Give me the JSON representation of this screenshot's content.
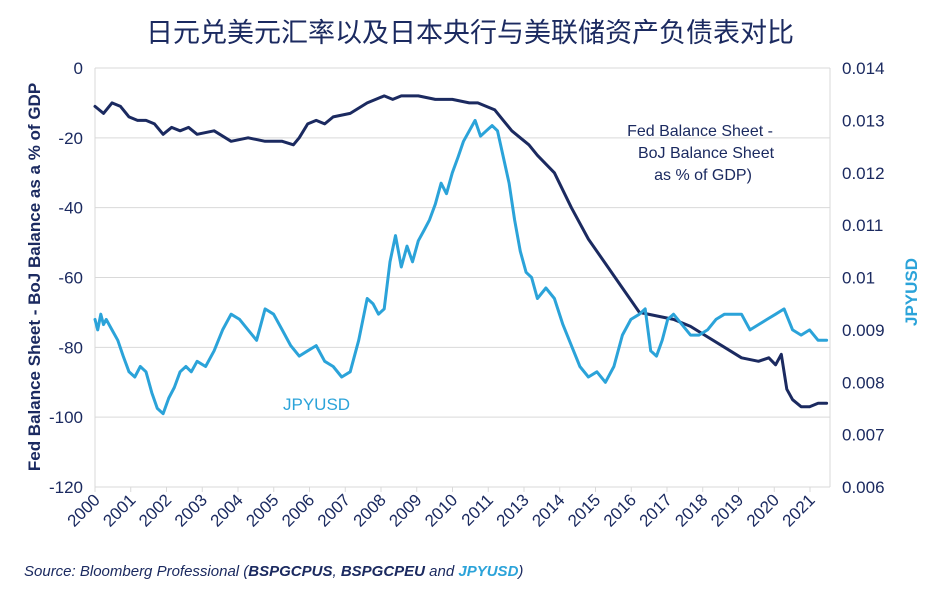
{
  "chart_data": {
    "type": "line",
    "title": "日元兑美元汇率以及日本央行与美联储资产负债表对比",
    "x_ticks": [
      "2000",
      "2001",
      "2002",
      "2003",
      "2004",
      "2005",
      "2006",
      "2007",
      "2008",
      "2009",
      "2010",
      "2011",
      "2013",
      "2014",
      "2015",
      "2016",
      "2017",
      "2018",
      "2019",
      "2020",
      "2021"
    ],
    "y_left": {
      "label": "Fed Balance Sheet - BoJ Balance as a % of GDP",
      "ticks": [
        "0",
        "-20",
        "-40",
        "-60",
        "-80",
        "-100",
        "-120"
      ],
      "range": [
        -120,
        0
      ]
    },
    "y_right": {
      "label": "JPYUSD",
      "ticks": [
        "0.014",
        "0.013",
        "0.012",
        "0.011",
        "0.01",
        "0.009",
        "0.008",
        "0.007",
        "0.006"
      ],
      "range": [
        0.006,
        0.014
      ]
    },
    "grid": true,
    "series": [
      {
        "name": "Fed Balance Sheet - BoJ Balance Sheet as % of GDP)",
        "axis": "left",
        "color": "#1b2a60",
        "x": [
          2000.0,
          2000.25,
          2000.5,
          2000.75,
          2001.0,
          2001.25,
          2001.5,
          2001.75,
          2002.0,
          2002.25,
          2002.5,
          2002.75,
          2003.0,
          2003.5,
          2004.0,
          2004.5,
          2005.0,
          2005.5,
          2005.83,
          2006.0,
          2006.25,
          2006.5,
          2006.75,
          2007.0,
          2007.5,
          2008.0,
          2008.25,
          2008.5,
          2008.75,
          2009.0,
          2009.5,
          2010.0,
          2010.5,
          2011.0,
          2011.25,
          2011.5,
          2011.75,
          2012.0,
          2012.25,
          2012.5,
          2012.75,
          2013.0,
          2013.5,
          2014.0,
          2014.5,
          2015.0,
          2015.5,
          2016.0,
          2016.5,
          2017.0,
          2017.5,
          2018.0,
          2018.5,
          2019.0,
          2019.5,
          2019.8,
          2020.0,
          2020.17,
          2020.33,
          2020.5,
          2020.75,
          2021.0,
          2021.25,
          2021.5
        ],
        "values": [
          -11,
          -13,
          -10,
          -11,
          -14,
          -15,
          -15,
          -16,
          -19,
          -17,
          -18,
          -17,
          -19,
          -18,
          -21,
          -20,
          -21,
          -21,
          -22,
          -20,
          -16,
          -15,
          -16,
          -14,
          -13,
          -10,
          -9,
          -8,
          -9,
          -8,
          -8,
          -9,
          -9,
          -10,
          -10,
          -11,
          -12,
          -15,
          -18,
          -20,
          -22,
          -25,
          -30,
          -40,
          -49,
          -56,
          -63,
          -70,
          -71,
          -72,
          -74,
          -77,
          -80,
          -83,
          -84,
          -83,
          -85,
          -82,
          -92,
          -95,
          -97,
          -97,
          -96,
          -96
        ]
      },
      {
        "name": "JPYUSD",
        "axis": "right",
        "color": "#2ba3d9",
        "x": [
          2000.0,
          2000.08,
          2000.17,
          2000.25,
          2000.33,
          2000.5,
          2000.67,
          2000.83,
          2001.0,
          2001.17,
          2001.33,
          2001.5,
          2001.67,
          2001.83,
          2002.0,
          2002.17,
          2002.33,
          2002.5,
          2002.67,
          2002.83,
          2003.0,
          2003.25,
          2003.5,
          2003.75,
          2004.0,
          2004.25,
          2004.5,
          2004.75,
          2005.0,
          2005.25,
          2005.5,
          2005.75,
          2006.0,
          2006.25,
          2006.5,
          2006.75,
          2007.0,
          2007.25,
          2007.5,
          2007.75,
          2008.0,
          2008.17,
          2008.33,
          2008.5,
          2008.67,
          2008.83,
          2009.0,
          2009.17,
          2009.33,
          2009.5,
          2009.67,
          2009.83,
          2010.0,
          2010.17,
          2010.33,
          2010.5,
          2010.67,
          2010.83,
          2011.0,
          2011.17,
          2011.33,
          2011.5,
          2011.67,
          2011.83,
          2012.0,
          2012.17,
          2012.33,
          2012.5,
          2012.67,
          2012.83,
          2013.0,
          2013.25,
          2013.5,
          2013.75,
          2014.0,
          2014.25,
          2014.5,
          2014.75,
          2015.0,
          2015.25,
          2015.5,
          2015.75,
          2016.0,
          2016.17,
          2016.33,
          2016.5,
          2016.67,
          2016.83,
          2017.0,
          2017.25,
          2017.5,
          2017.75,
          2018.0,
          2018.25,
          2018.5,
          2018.75,
          2019.0,
          2019.25,
          2019.5,
          2019.75,
          2020.0,
          2020.25,
          2020.5,
          2020.75,
          2021.0,
          2021.25,
          2021.5
        ],
        "values": [
          0.0092,
          0.009,
          0.0093,
          0.0091,
          0.0092,
          0.009,
          0.0088,
          0.0085,
          0.0082,
          0.0081,
          0.0083,
          0.0082,
          0.0078,
          0.0075,
          0.0074,
          0.0077,
          0.0079,
          0.0082,
          0.0083,
          0.0082,
          0.0084,
          0.0083,
          0.0086,
          0.009,
          0.0093,
          0.0092,
          0.009,
          0.0088,
          0.0094,
          0.0093,
          0.009,
          0.0087,
          0.0085,
          0.0086,
          0.0087,
          0.0084,
          0.0083,
          0.0081,
          0.0082,
          0.0088,
          0.0096,
          0.0095,
          0.0093,
          0.0094,
          0.0103,
          0.0108,
          0.0102,
          0.0106,
          0.0103,
          0.0107,
          0.0109,
          0.0111,
          0.0114,
          0.0118,
          0.0116,
          0.012,
          0.0123,
          0.0126,
          0.0128,
          0.013,
          0.0127,
          0.0128,
          0.0129,
          0.0128,
          0.0123,
          0.0118,
          0.0111,
          0.0105,
          0.0101,
          0.01,
          0.0096,
          0.0098,
          0.0096,
          0.0091,
          0.0087,
          0.0083,
          0.0081,
          0.0082,
          0.008,
          0.0083,
          0.0089,
          0.0092,
          0.0093,
          0.0094,
          0.0086,
          0.0085,
          0.0088,
          0.0092,
          0.0093,
          0.0091,
          0.0089,
          0.0089,
          0.009,
          0.0092,
          0.0093,
          0.0093,
          0.0093,
          0.009,
          0.0091,
          0.0092,
          0.0093,
          0.0094,
          0.009,
          0.0089,
          0.009,
          0.0088,
          0.0088
        ]
      }
    ],
    "annotations": {
      "fed_label_lines": [
        "Fed Balance Sheet -",
        "BoJ Balance Sheet",
        "as % of GDP)"
      ],
      "jpy_label": "JPYUSD"
    }
  },
  "source": {
    "prefix": "Source: Bloomberg Professional (",
    "code1": "BSPGCPUS",
    "sep": ", ",
    "code2": "BSPGCPEU",
    "and": " and ",
    "code3": "JPYUSD",
    "suffix": ")"
  },
  "colors": {
    "navy": "#1b2a60",
    "blue": "#2ba3d9",
    "grid": "#d9d9d9"
  }
}
